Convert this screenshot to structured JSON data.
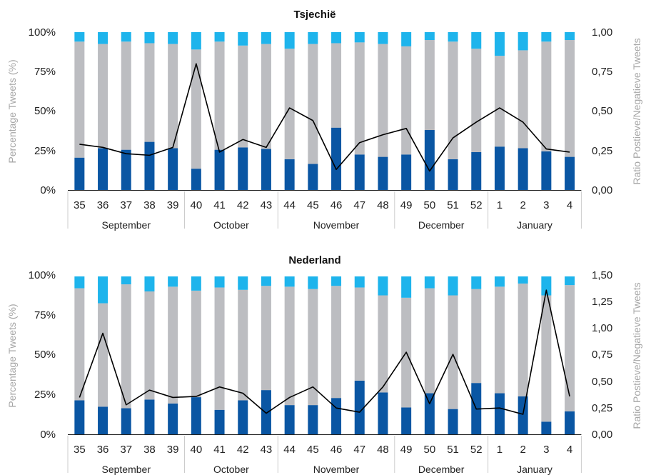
{
  "colors": {
    "negative": "#0a56a3",
    "neutral": "#bcbdc1",
    "positive": "#1eb4ec",
    "ratio_line": "#000000",
    "axis": "#222222",
    "separator": "#cccccc",
    "axis_title": "#a6a6a6"
  },
  "chart_data": [
    {
      "type": "bar",
      "stacked": true,
      "title": "Tsjechië",
      "ylabel": "Percentage Tweets (%)",
      "y2label": "Ratio Postieve/Negatieve Tweets",
      "ylim": [
        0,
        100
      ],
      "y2lim": [
        0,
        1
      ],
      "y_ticks": [
        "0%",
        "25%",
        "50%",
        "75%",
        "100%"
      ],
      "y2_ticks": [
        "0,00",
        "0,25",
        "0,50",
        "0,75",
        "1,00"
      ],
      "categories": [
        "35",
        "36",
        "37",
        "38",
        "39",
        "40",
        "41",
        "42",
        "43",
        "44",
        "45",
        "46",
        "47",
        "48",
        "49",
        "50",
        "51",
        "52",
        "1",
        "2",
        "3",
        "4"
      ],
      "groups": [
        {
          "label": "September",
          "count": 5
        },
        {
          "label": "October",
          "count": 4
        },
        {
          "label": "November",
          "count": 5
        },
        {
          "label": "December",
          "count": 4
        },
        {
          "label": "January",
          "count": 4
        }
      ],
      "series": [
        {
          "key": "negative",
          "values": [
            20.5,
            26.5,
            25.5,
            30.5,
            26.5,
            13.5,
            25.5,
            27,
            26,
            19.5,
            16.5,
            39.5,
            22.5,
            21,
            22.5,
            38,
            19.5,
            24,
            27.5,
            26.5,
            24.5,
            21
          ]
        },
        {
          "key": "neutral",
          "values": [
            73.5,
            66,
            68.5,
            62.5,
            66,
            75.5,
            68.5,
            64.5,
            66.5,
            70,
            76,
            53.5,
            71,
            71.5,
            68.5,
            57,
            74.5,
            65.5,
            57.5,
            62,
            69.5,
            74
          ]
        },
        {
          "key": "positive",
          "values": [
            6,
            7.5,
            6,
            7,
            7.5,
            11,
            6,
            8.5,
            7.5,
            10.5,
            7.5,
            7,
            6.5,
            7.5,
            9,
            5,
            6,
            10.5,
            15,
            11.5,
            6,
            5
          ]
        },
        {
          "key": "ratio",
          "type": "line",
          "values": [
            0.29,
            0.27,
            0.23,
            0.22,
            0.27,
            0.8,
            0.24,
            0.32,
            0.27,
            0.52,
            0.44,
            0.13,
            0.3,
            0.35,
            0.39,
            0.12,
            0.33,
            0.43,
            0.52,
            0.43,
            0.26,
            0.24
          ]
        }
      ]
    },
    {
      "type": "bar",
      "stacked": true,
      "title": "Nederland",
      "ylabel": "Percentage Tweets (%)",
      "y2label": "Ratio Postieve/Negatieve Tweets",
      "ylim": [
        0,
        100
      ],
      "y2lim": [
        0,
        1.5
      ],
      "y_ticks": [
        "0%",
        "25%",
        "50%",
        "75%",
        "100%"
      ],
      "y2_ticks": [
        "0,00",
        "0,25",
        "0,50",
        "0,75",
        "1,00",
        "1,25",
        "1,50"
      ],
      "categories": [
        "35",
        "36",
        "37",
        "38",
        "39",
        "40",
        "41",
        "42",
        "43",
        "44",
        "45",
        "46",
        "47",
        "48",
        "49",
        "50",
        "51",
        "52",
        "1",
        "2",
        "3",
        "4"
      ],
      "groups": [
        {
          "label": "September",
          "count": 5
        },
        {
          "label": "October",
          "count": 4
        },
        {
          "label": "November",
          "count": 5
        },
        {
          "label": "December",
          "count": 4
        },
        {
          "label": "January",
          "count": 4
        }
      ],
      "series": [
        {
          "key": "negative",
          "values": [
            21.5,
            17.5,
            16.5,
            22,
            19.5,
            23.5,
            15.5,
            21.5,
            28,
            18.5,
            18.5,
            23,
            34,
            26.5,
            17,
            26,
            16,
            32.5,
            26,
            24,
            8,
            14.5
          ]
        },
        {
          "key": "neutral",
          "values": [
            71,
            65.5,
            78.5,
            68.5,
            74,
            67.5,
            77.5,
            70,
            66,
            75,
            73.5,
            71,
            59,
            61.5,
            69.5,
            66.5,
            72,
            59.5,
            67.5,
            71.5,
            80,
            80
          ]
        },
        {
          "key": "positive",
          "values": [
            7.5,
            17,
            5,
            9.5,
            6.5,
            9,
            7,
            8.5,
            6,
            6.5,
            8,
            6,
            7,
            12,
            13.5,
            7.5,
            12,
            8,
            6.5,
            4.5,
            12,
            5.5
          ]
        },
        {
          "key": "ratio",
          "type": "line",
          "values": [
            0.35,
            0.96,
            0.28,
            0.42,
            0.35,
            0.36,
            0.45,
            0.39,
            0.2,
            0.35,
            0.45,
            0.25,
            0.21,
            0.45,
            0.78,
            0.29,
            0.76,
            0.24,
            0.25,
            0.19,
            1.37,
            0.36
          ]
        }
      ]
    }
  ]
}
